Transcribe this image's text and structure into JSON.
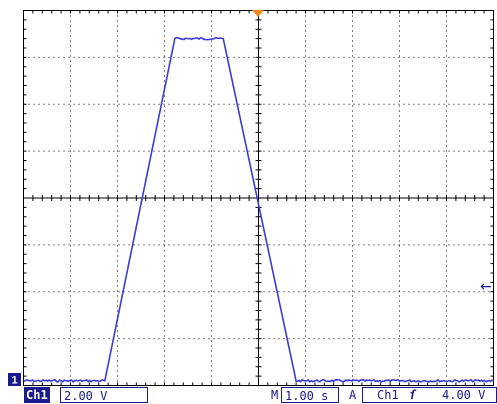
{
  "display": {
    "divisions_x": 10,
    "divisions_y": 8,
    "grid_color": "#000000",
    "trace_color": "#3b3bd6"
  },
  "waveform": {
    "channel": "Ch1",
    "time_per_div_s": 1.0,
    "volts_per_div": 2.0,
    "points": [
      {
        "t": -5.0,
        "v": -7.8
      },
      {
        "t": -3.27,
        "v": -7.8
      },
      {
        "t": -1.78,
        "v": 6.8
      },
      {
        "t": -0.75,
        "v": 6.8
      },
      {
        "t": 0.8,
        "v": -7.8
      },
      {
        "t": 5.0,
        "v": -7.8
      }
    ]
  },
  "markers": {
    "channel_ground": "1",
    "trigger_level_arrow": "←"
  },
  "status": {
    "channel_label": "Ch1",
    "channel_scale": "2.00 V",
    "horizontal_prefix": "M",
    "horizontal_scale": "1.00 s",
    "acquire_prefix": "A",
    "trigger_source": "Ch1",
    "trigger_slope_symbol": "ſ",
    "trigger_level": "4.00 V"
  }
}
